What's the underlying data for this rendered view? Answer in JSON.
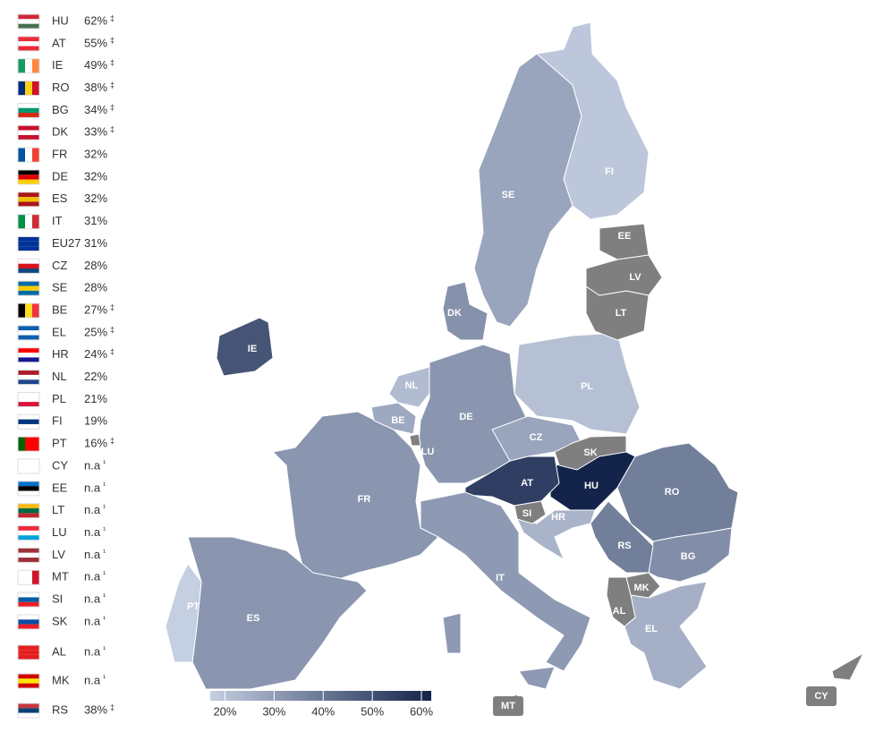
{
  "rows": [
    {
      "code": "HU",
      "value": 62,
      "value_label": "62%",
      "note": "‡"
    },
    {
      "code": "AT",
      "value": 55,
      "value_label": "55%",
      "note": "‡"
    },
    {
      "code": "IE",
      "value": 49,
      "value_label": "49%",
      "note": "‡"
    },
    {
      "code": "RO",
      "value": 38,
      "value_label": "38%",
      "note": "‡"
    },
    {
      "code": "BG",
      "value": 34,
      "value_label": "34%",
      "note": "‡"
    },
    {
      "code": "DK",
      "value": 33,
      "value_label": "33%",
      "note": "‡"
    },
    {
      "code": "FR",
      "value": 32,
      "value_label": "32%"
    },
    {
      "code": "DE",
      "value": 32,
      "value_label": "32%"
    },
    {
      "code": "ES",
      "value": 32,
      "value_label": "32%"
    },
    {
      "code": "IT",
      "value": 31,
      "value_label": "31%"
    },
    {
      "code": "EU27",
      "value": 31,
      "value_label": "31%"
    },
    {
      "code": "CZ",
      "value": 28,
      "value_label": "28%"
    },
    {
      "code": "SE",
      "value": 28,
      "value_label": "28%"
    },
    {
      "code": "BE",
      "value": 27,
      "value_label": "27%",
      "note": "‡"
    },
    {
      "code": "EL",
      "value": 25,
      "value_label": "25%",
      "note": "‡"
    },
    {
      "code": "HR",
      "value": 24,
      "value_label": "24%",
      "note": "‡"
    },
    {
      "code": "NL",
      "value": 22,
      "value_label": "22%"
    },
    {
      "code": "PL",
      "value": 21,
      "value_label": "21%"
    },
    {
      "code": "FI",
      "value": 19,
      "value_label": "19%"
    },
    {
      "code": "PT",
      "value": 16,
      "value_label": "16%",
      "note": "‡"
    },
    {
      "code": "CY",
      "value": null,
      "value_label": "n.a",
      "note": "¹"
    },
    {
      "code": "EE",
      "value": null,
      "value_label": "n.a",
      "note": "¹"
    },
    {
      "code": "LT",
      "value": null,
      "value_label": "n.a",
      "note": "¹"
    },
    {
      "code": "LU",
      "value": null,
      "value_label": "n.a",
      "note": "¹"
    },
    {
      "code": "LV",
      "value": null,
      "value_label": "n.a",
      "note": "¹"
    },
    {
      "code": "MT",
      "value": null,
      "value_label": "n.a",
      "note": "¹"
    },
    {
      "code": "SI",
      "value": null,
      "value_label": "n.a",
      "note": "¹"
    },
    {
      "code": "SK",
      "value": null,
      "value_label": "n.a",
      "note": "¹"
    },
    {
      "code": "AL",
      "value": null,
      "value_label": "n.a",
      "note": "¹"
    },
    {
      "code": "MK",
      "value": null,
      "value_label": "n.a",
      "note": "¹"
    },
    {
      "code": "RS",
      "value": 38,
      "value_label": "38%",
      "note": "‡"
    }
  ],
  "scale": {
    "lim": [
      17,
      62
    ],
    "colors": [
      "#c5cfe2",
      "#13234a"
    ],
    "na_color": "#7f7f7f",
    "ticks": [
      {
        "value": 20,
        "label": "20%"
      },
      {
        "value": 30,
        "label": "30%"
      },
      {
        "value": 40,
        "label": "40%"
      },
      {
        "value": 50,
        "label": "50%"
      },
      {
        "value": 60,
        "label": "60%"
      }
    ]
  }
}
